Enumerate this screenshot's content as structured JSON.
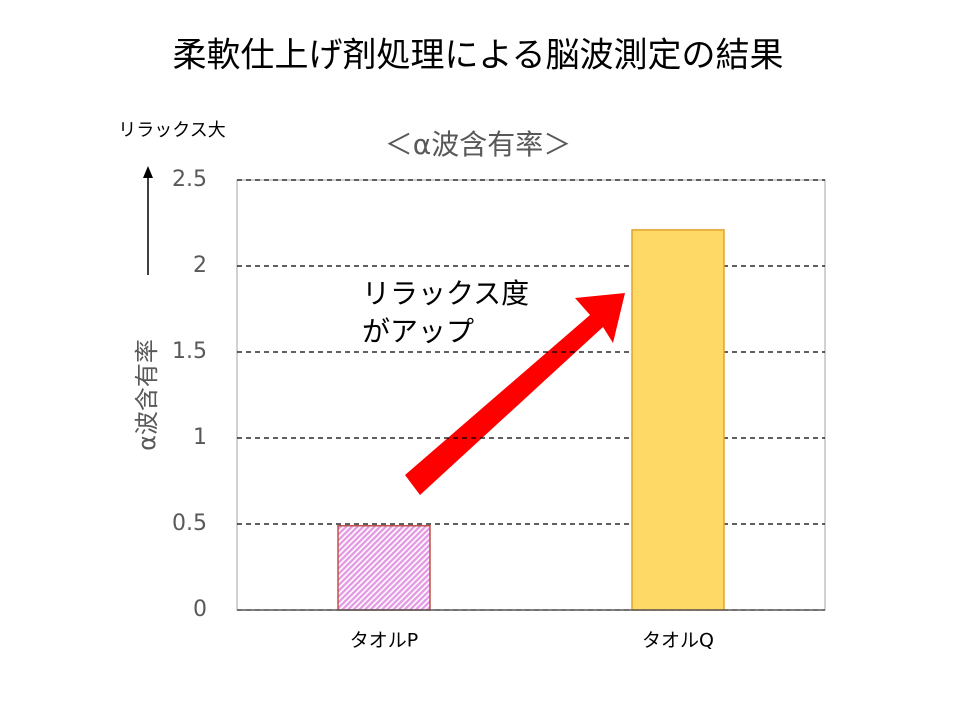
{
  "chart_data": {
    "type": "bar",
    "title": "柔軟仕上げ剤処理による脳波測定の結果",
    "subtitle": "＜α波含有率＞",
    "y_label": "α波含有率",
    "y_direction_label": "リラックス大",
    "annotation": [
      "リラックス度",
      "がアップ"
    ],
    "categories": [
      "タオルP",
      "タオルQ"
    ],
    "values": [
      0.49,
      2.21
    ],
    "colors": [
      "#e49be4",
      "#ffd966"
    ],
    "edge_colors": [
      "#c0504d",
      "#e3a32c"
    ],
    "hatches": [
      true,
      false
    ],
    "ylim": [
      0,
      2.5
    ],
    "yticks": [
      0,
      0.5,
      1,
      1.5,
      2,
      2.5
    ],
    "grid": true
  }
}
